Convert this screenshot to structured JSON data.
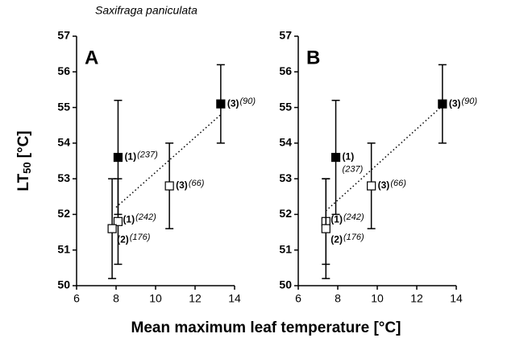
{
  "figure": {
    "title": "Saxifraga paniculata",
    "x_label": "Mean maximum leaf temperature [°C]",
    "y_label": {
      "main": "LT",
      "sub": "50",
      "unit": "[°C]"
    }
  },
  "chart_data": [
    {
      "type": "scatter",
      "panel": "A",
      "xlim": [
        6,
        14
      ],
      "ylim": [
        50,
        57
      ],
      "xticks": [
        6,
        8,
        10,
        12,
        14
      ],
      "yticks": [
        50,
        51,
        52,
        53,
        54,
        55,
        56,
        57
      ],
      "series": [
        {
          "marker": "filled",
          "color": "#000000",
          "x": [
            8.1,
            13.3
          ],
          "values": [
            53.6,
            55.1
          ],
          "errors": [
            1.6,
            1.1
          ],
          "point_labels": [
            "(1)",
            "(3)"
          ],
          "sample_sizes": [
            "(237)",
            "(90)"
          ]
        },
        {
          "marker": "open",
          "color": "#000000",
          "x": [
            10.7,
            8.1,
            7.8
          ],
          "values": [
            52.8,
            51.8,
            51.6
          ],
          "errors": [
            1.2,
            1.2,
            1.4
          ],
          "point_labels": [
            "(3)",
            "(1)",
            "(2)"
          ],
          "sample_sizes": [
            "(66)",
            "(242)",
            "(176)"
          ]
        }
      ],
      "trend": {
        "x": [
          8.0,
          13.3
        ],
        "y": [
          52.2,
          54.8
        ]
      }
    },
    {
      "type": "scatter",
      "panel": "B",
      "xlim": [
        6,
        14
      ],
      "ylim": [
        50,
        57
      ],
      "xticks": [
        6,
        8,
        10,
        12,
        14
      ],
      "yticks": [
        50,
        51,
        52,
        53,
        54,
        55,
        56,
        57
      ],
      "series": [
        {
          "marker": "filled",
          "color": "#000000",
          "x": [
            7.9,
            13.3
          ],
          "values": [
            53.6,
            55.1
          ],
          "errors": [
            1.6,
            1.1
          ],
          "point_labels": [
            "(1)",
            "(3)"
          ],
          "sample_sizes": [
            "(237)",
            "(90)"
          ]
        },
        {
          "marker": "open",
          "color": "#000000",
          "x": [
            9.7,
            7.4,
            7.4
          ],
          "values": [
            52.8,
            51.8,
            51.6
          ],
          "errors": [
            1.2,
            1.2,
            1.4
          ],
          "point_labels": [
            "(3)",
            "(1)",
            "(2)"
          ],
          "sample_sizes": [
            "(66)",
            "(242)",
            "(176)"
          ]
        }
      ],
      "trend": {
        "x": [
          7.4,
          13.2
        ],
        "y": [
          52.1,
          55.0
        ]
      }
    }
  ]
}
